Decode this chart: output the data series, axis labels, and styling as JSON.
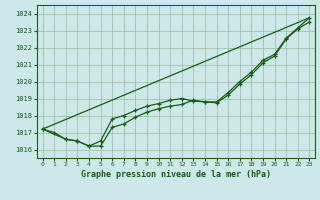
{
  "title": "Graphe pression niveau de la mer (hPa)",
  "bg_color": "#cce8e8",
  "grid_color": "#99bb99",
  "line_color": "#1a5c1a",
  "xlim": [
    -0.5,
    23.5
  ],
  "ylim": [
    1015.5,
    1024.5
  ],
  "xticks": [
    0,
    1,
    2,
    3,
    4,
    5,
    6,
    7,
    8,
    9,
    10,
    11,
    12,
    13,
    14,
    15,
    16,
    17,
    18,
    19,
    20,
    21,
    22,
    23
  ],
  "yticks": [
    1016,
    1017,
    1018,
    1019,
    1020,
    1021,
    1022,
    1023,
    1024
  ],
  "series1_x": [
    0,
    1,
    2,
    3,
    4,
    5,
    6,
    7,
    8,
    9,
    10,
    11,
    12,
    13,
    14,
    15,
    16,
    17,
    18,
    19,
    20,
    21,
    22,
    23
  ],
  "series1_y": [
    1017.2,
    1017.0,
    1016.6,
    1016.5,
    1016.2,
    1016.2,
    1017.3,
    1017.5,
    1017.9,
    1018.2,
    1018.4,
    1018.55,
    1018.65,
    1018.9,
    1018.8,
    1018.75,
    1019.2,
    1019.85,
    1020.4,
    1021.1,
    1021.5,
    1022.5,
    1023.1,
    1023.5
  ],
  "series2_x": [
    0,
    2,
    3,
    4,
    5,
    6,
    7,
    8,
    9,
    10,
    11,
    12,
    13,
    14,
    15,
    16,
    17,
    18,
    19,
    20,
    21,
    22,
    23
  ],
  "series2_y": [
    1017.2,
    1016.6,
    1016.5,
    1016.2,
    1016.5,
    1017.8,
    1018.0,
    1018.3,
    1018.55,
    1018.7,
    1018.9,
    1019.0,
    1018.85,
    1018.8,
    1018.8,
    1019.35,
    1020.0,
    1020.55,
    1021.25,
    1021.6,
    1022.55,
    1023.15,
    1023.75
  ],
  "series3_x": [
    0,
    23
  ],
  "series3_y": [
    1017.2,
    1023.75
  ]
}
